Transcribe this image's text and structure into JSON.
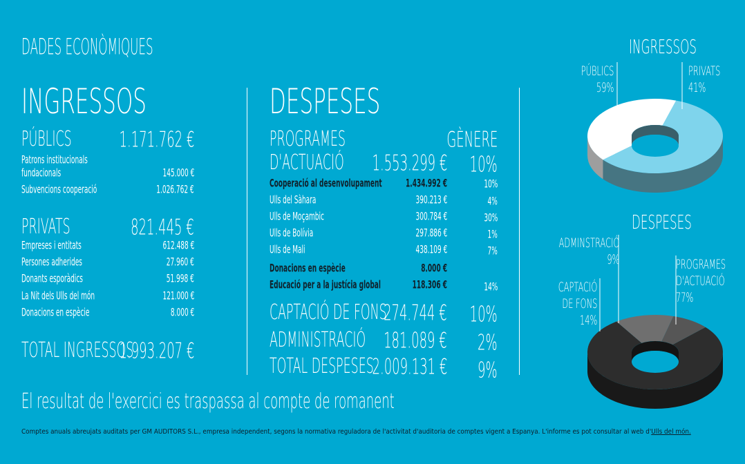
{
  "header": {
    "title": "DADES ECONÒMIQUES"
  },
  "ingressos": {
    "title": "INGRESSOS",
    "publics": {
      "label": "PÚBLICS",
      "value": "1.171.762 €",
      "items": [
        {
          "label": "Patrons institucionals",
          "label2": "fundacionals",
          "value": "145.000 €"
        },
        {
          "label": "Subvencions cooperació",
          "value": "1.026.762 €"
        }
      ]
    },
    "privats": {
      "label": "PRIVATS",
      "value": "821.445 €",
      "items": [
        {
          "label": "Empreses i entitats",
          "value": "612.488 €"
        },
        {
          "label": "Persones adherides",
          "value": "27.960 €"
        },
        {
          "label": "Donants esporàdics",
          "value": "51.998 €"
        },
        {
          "label": "La Nit dels Ulls del món",
          "value": "121.000 €"
        },
        {
          "label": "Donacions en espècie",
          "value": "8.000 €"
        }
      ]
    },
    "total": {
      "label": "TOTAL INGRESSOS",
      "value": "1.993.207 €"
    }
  },
  "despeses": {
    "title": "DESPESES",
    "programes": {
      "label1": "PROGRAMES",
      "label2": "D'ACTUACIÓ",
      "value": "1.553.299 €",
      "genere_header": "GÈNERE",
      "genere": "10%"
    },
    "items": [
      {
        "label": "Cooperació al desenvolupament",
        "value": "1.434.992 €",
        "genere": "10%",
        "dark": true
      },
      {
        "label": "Ulls del Sàhara",
        "value": "390.213 €",
        "genere": "4%",
        "dark": false
      },
      {
        "label": "Ulls de Moçambic",
        "value": "300.784 €",
        "genere": "30%",
        "dark": false
      },
      {
        "label": "Ulls de Bolívia",
        "value": "297.886 €",
        "genere": "1%",
        "dark": false
      },
      {
        "label": "Ulls de Mali",
        "value": "438.109 €",
        "genere": "7%",
        "dark": false
      },
      {
        "label": "Donacions en espècie",
        "value": "8.000 €",
        "genere": "",
        "dark": true
      },
      {
        "label": "Educació per a la justícia global",
        "value": "118.306 €",
        "genere": "14%",
        "dark": true
      }
    ],
    "captacio": {
      "label": "CAPTACIÓ DE FONS",
      "value": "274.744 €",
      "genere": "10%"
    },
    "administracio": {
      "label": "ADMINISTRACIÓ",
      "value": "181.089 €",
      "genere": "2%"
    },
    "total": {
      "label": "TOTAL DESPESES",
      "value": "2.009.131 €",
      "genere": "9%"
    }
  },
  "result_text": "El resultat de l'exercici es traspassa al compte de romanent",
  "footer": {
    "text": "Comptes anuals abreujats auditats per GM AUDITORS S.L., empresa independent, segons la normativa reguladora de l'activitat d'auditoria de comptes vigent a Espanya. L'informe es pot consultar al web d'",
    "link": "Ulls del món."
  },
  "chart_data": [
    {
      "type": "pie",
      "title": "INGRESSOS",
      "series": [
        {
          "name": "PÚBLICS",
          "percent": 59,
          "color": "#7fd4ec"
        },
        {
          "name": "PRIVATS",
          "percent": 41,
          "color": "#ffffff"
        }
      ],
      "labels": [
        {
          "text1": "PÚBLICS",
          "text2": "59%"
        },
        {
          "text1": "PRIVATS",
          "text2": "41%"
        }
      ]
    },
    {
      "type": "pie",
      "title": "DESPESES",
      "series": [
        {
          "name": "PROGRAMES D'ACTUACIÓ",
          "percent": 77,
          "color": "#2d2d2d"
        },
        {
          "name": "CAPTACIÓ DE FONS",
          "percent": 14,
          "color": "#6f6f6f"
        },
        {
          "name": "ADMINSTRACIÓ",
          "percent": 9,
          "color": "#565656"
        }
      ],
      "labels": [
        {
          "text1": "ADMINSTRACIÓ",
          "text2": "9%"
        },
        {
          "text1": "PROGRAMES",
          "text2": "D'ACTUACIÓ",
          "text3": "77%"
        },
        {
          "text1": "CAPTACIÓ",
          "text2": "DE FONS",
          "text3": "14%"
        }
      ]
    }
  ]
}
